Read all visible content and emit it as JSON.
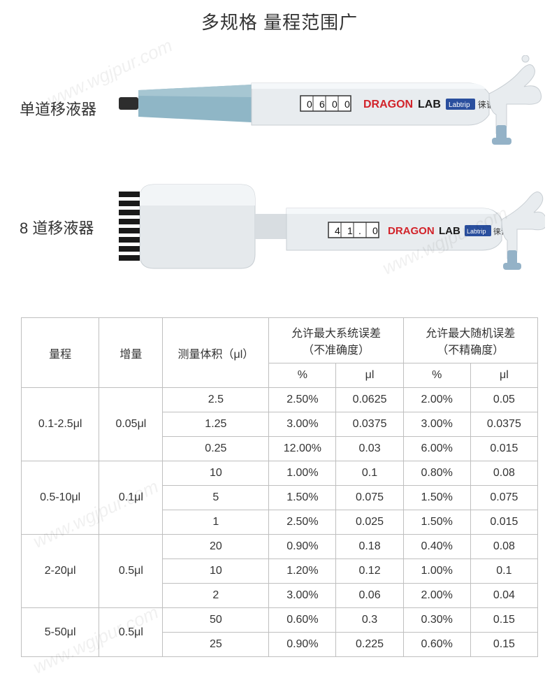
{
  "title": "多规格 量程范围广",
  "labels": {
    "single": "单道移液器",
    "multi": "8 道移液器"
  },
  "pipette_single": {
    "display": "0 6 0 0",
    "brand_red": "DRAGON",
    "brand_black": "LAB",
    "tag": "Labtrip",
    "tag_cn": "徕谱",
    "body_color": "#e8ecef",
    "cone_color": "#8fb6c6",
    "tip_color": "#2d2d2d",
    "accent_blue": "#94b2c7",
    "brand_red_color": "#d2232a",
    "brand_black_color": "#1a1a1a",
    "tag_bg": "#2a4f9e"
  },
  "pipette_multi": {
    "display": "4 1 . 0",
    "brand_red": "DRAGON",
    "brand_black": "LAB",
    "tag": "Labtrip",
    "tag_cn": "徕谱",
    "channels": 8,
    "head_color": "#e5e9ec",
    "tip_color": "#1a1a1a",
    "accent_blue": "#94b2c7"
  },
  "watermark_text": "www.wgjpur.com",
  "watermark_color": "rgba(0,0,0,0.06)",
  "table": {
    "border_color": "#bfbfbf",
    "font_size": 16,
    "text_color": "#333333",
    "background_color": "#ffffff",
    "headers": {
      "range": "量程",
      "increment": "增量",
      "volume": "测量体积（μl）",
      "sys_err": "允许最大系统误差\n（不准确度）",
      "rand_err": "允许最大随机误差\n（不精确度）",
      "percent": "%",
      "ul": "μl"
    },
    "groups": [
      {
        "range": "0.1-2.5μl",
        "increment": "0.05μl",
        "rows": [
          {
            "vol": "2.5",
            "sys_p": "2.50%",
            "sys_u": "0.0625",
            "rand_p": "2.00%",
            "rand_u": "0.05"
          },
          {
            "vol": "1.25",
            "sys_p": "3.00%",
            "sys_u": "0.0375",
            "rand_p": "3.00%",
            "rand_u": "0.0375"
          },
          {
            "vol": "0.25",
            "sys_p": "12.00%",
            "sys_u": "0.03",
            "rand_p": "6.00%",
            "rand_u": "0.015"
          }
        ]
      },
      {
        "range": "0.5-10μl",
        "increment": "0.1μl",
        "rows": [
          {
            "vol": "10",
            "sys_p": "1.00%",
            "sys_u": "0.1",
            "rand_p": "0.80%",
            "rand_u": "0.08"
          },
          {
            "vol": "5",
            "sys_p": "1.50%",
            "sys_u": "0.075",
            "rand_p": "1.50%",
            "rand_u": "0.075"
          },
          {
            "vol": "1",
            "sys_p": "2.50%",
            "sys_u": "0.025",
            "rand_p": "1.50%",
            "rand_u": "0.015"
          }
        ]
      },
      {
        "range": "2-20μl",
        "increment": "0.5μl",
        "rows": [
          {
            "vol": "20",
            "sys_p": "0.90%",
            "sys_u": "0.18",
            "rand_p": "0.40%",
            "rand_u": "0.08"
          },
          {
            "vol": "10",
            "sys_p": "1.20%",
            "sys_u": "0.12",
            "rand_p": "1.00%",
            "rand_u": "0.1"
          },
          {
            "vol": "2",
            "sys_p": "3.00%",
            "sys_u": "0.06",
            "rand_p": "2.00%",
            "rand_u": "0.04"
          }
        ]
      },
      {
        "range": "5-50μl",
        "increment": "0.5μl",
        "rows": [
          {
            "vol": "50",
            "sys_p": "0.60%",
            "sys_u": "0.3",
            "rand_p": "0.30%",
            "rand_u": "0.15"
          },
          {
            "vol": "25",
            "sys_p": "0.90%",
            "sys_u": "0.225",
            "rand_p": "0.60%",
            "rand_u": "0.15"
          }
        ]
      }
    ]
  }
}
